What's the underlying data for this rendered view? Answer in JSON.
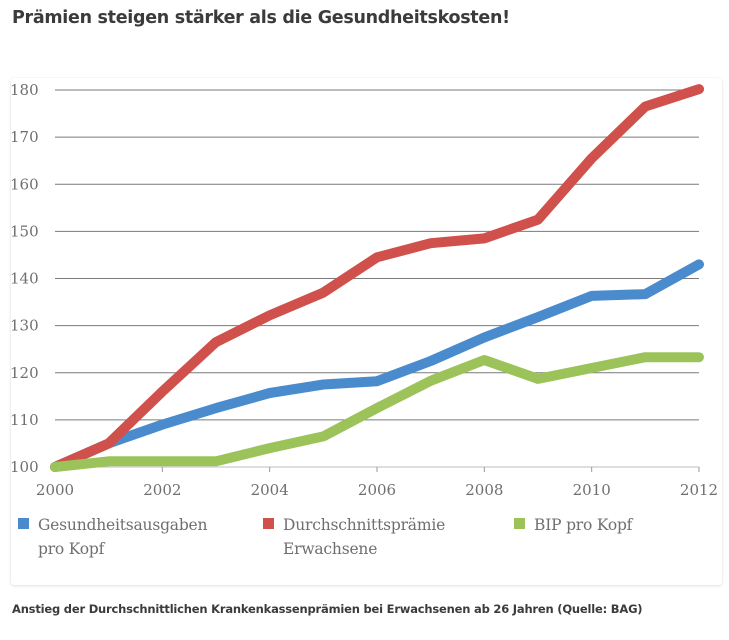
{
  "header": {
    "title": "Prämien steigen stärker als die Gesundheitskosten!"
  },
  "caption": "Anstieg der Durchschnittlichen Krankenkassenprämien bei Erwachsenen ab 26 Jahren (Quelle: BAG)",
  "chart_data": {
    "type": "line",
    "title": "Prämien steigen stärker als die Gesundheitskosten!",
    "xlabel": "",
    "ylabel": "",
    "x": [
      2000,
      2001,
      2002,
      2003,
      2004,
      2005,
      2006,
      2007,
      2008,
      2009,
      2010,
      2011,
      2012
    ],
    "xlim": [
      2000,
      2012
    ],
    "ylim": [
      100,
      180
    ],
    "x_ticks": [
      "2000",
      "2002",
      "2004",
      "2006",
      "2008",
      "2010",
      "2012"
    ],
    "x_tick_values": [
      2000,
      2002,
      2004,
      2006,
      2008,
      2010,
      2012
    ],
    "y_ticks": [
      "100",
      "110",
      "120",
      "130",
      "140",
      "150",
      "160",
      "170",
      "180"
    ],
    "y_tick_values": [
      100,
      110,
      120,
      130,
      140,
      150,
      160,
      170,
      180
    ],
    "grid": true,
    "legend_position": "bottom",
    "series": [
      {
        "name": "Gesundheitsausgaben\npro Kopf",
        "color": "#4a8bcd",
        "values": [
          100,
          105,
          109,
          112.5,
          115.7,
          117.5,
          118.2,
          122.5,
          127.5,
          131.8,
          136.3,
          136.7,
          143
        ]
      },
      {
        "name": "Durchschnittsprämie\nErwachsene",
        "color": "#d0504c",
        "values": [
          100,
          105,
          116,
          126.5,
          132.2,
          137,
          144.5,
          147.5,
          148.5,
          152.5,
          165.5,
          176.5,
          180.2
        ]
      },
      {
        "name": "BIP pro Kopf",
        "color": "#9cc35a",
        "values": [
          100,
          101.2,
          101.2,
          101.2,
          104,
          106.5,
          112.5,
          118.3,
          122.7,
          118.7,
          121,
          123.3,
          123.3
        ]
      }
    ]
  }
}
